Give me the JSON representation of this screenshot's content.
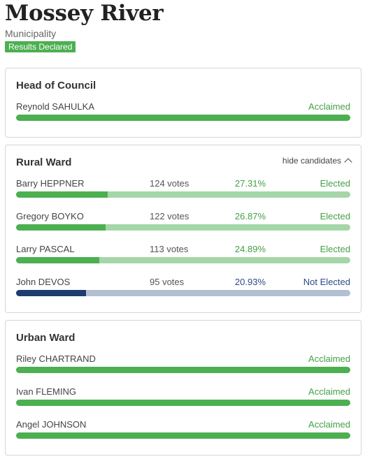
{
  "header": {
    "title": "Mossey River",
    "subtitle": "Municipality",
    "badge": "Results Declared"
  },
  "colors": {
    "elected_fill": "#4caf50",
    "elected_track": "#a5d6a7",
    "not_elected_fill": "#1f3c6e",
    "not_elected_track": "#b3bfd3",
    "acclaimed": "#4caf50"
  },
  "head_of_council": {
    "title": "Head of Council",
    "candidates": [
      {
        "name": "Reynold SAHULKA",
        "status": "Acclaimed"
      }
    ]
  },
  "rural_ward": {
    "title": "Rural Ward",
    "toggle_label": "hide candidates",
    "toggle_icon": "chevron-up-icon",
    "candidates": [
      {
        "name": "Barry HEPPNER",
        "votes": "124 votes",
        "percent": "27.31%",
        "share": 0.2731,
        "status": "Elected"
      },
      {
        "name": "Gregory BOYKO",
        "votes": "122 votes",
        "percent": "26.87%",
        "share": 0.2687,
        "status": "Elected"
      },
      {
        "name": "Larry PASCAL",
        "votes": "113 votes",
        "percent": "24.89%",
        "share": 0.2489,
        "status": "Elected"
      },
      {
        "name": "John DEVOS",
        "votes": "95 votes",
        "percent": "20.93%",
        "share": 0.2093,
        "status": "Not Elected"
      }
    ]
  },
  "urban_ward": {
    "title": "Urban Ward",
    "candidates": [
      {
        "name": "Riley CHARTRAND",
        "status": "Acclaimed"
      },
      {
        "name": "Ivan FLEMING",
        "status": "Acclaimed"
      },
      {
        "name": "Angel JOHNSON",
        "status": "Acclaimed"
      }
    ]
  }
}
